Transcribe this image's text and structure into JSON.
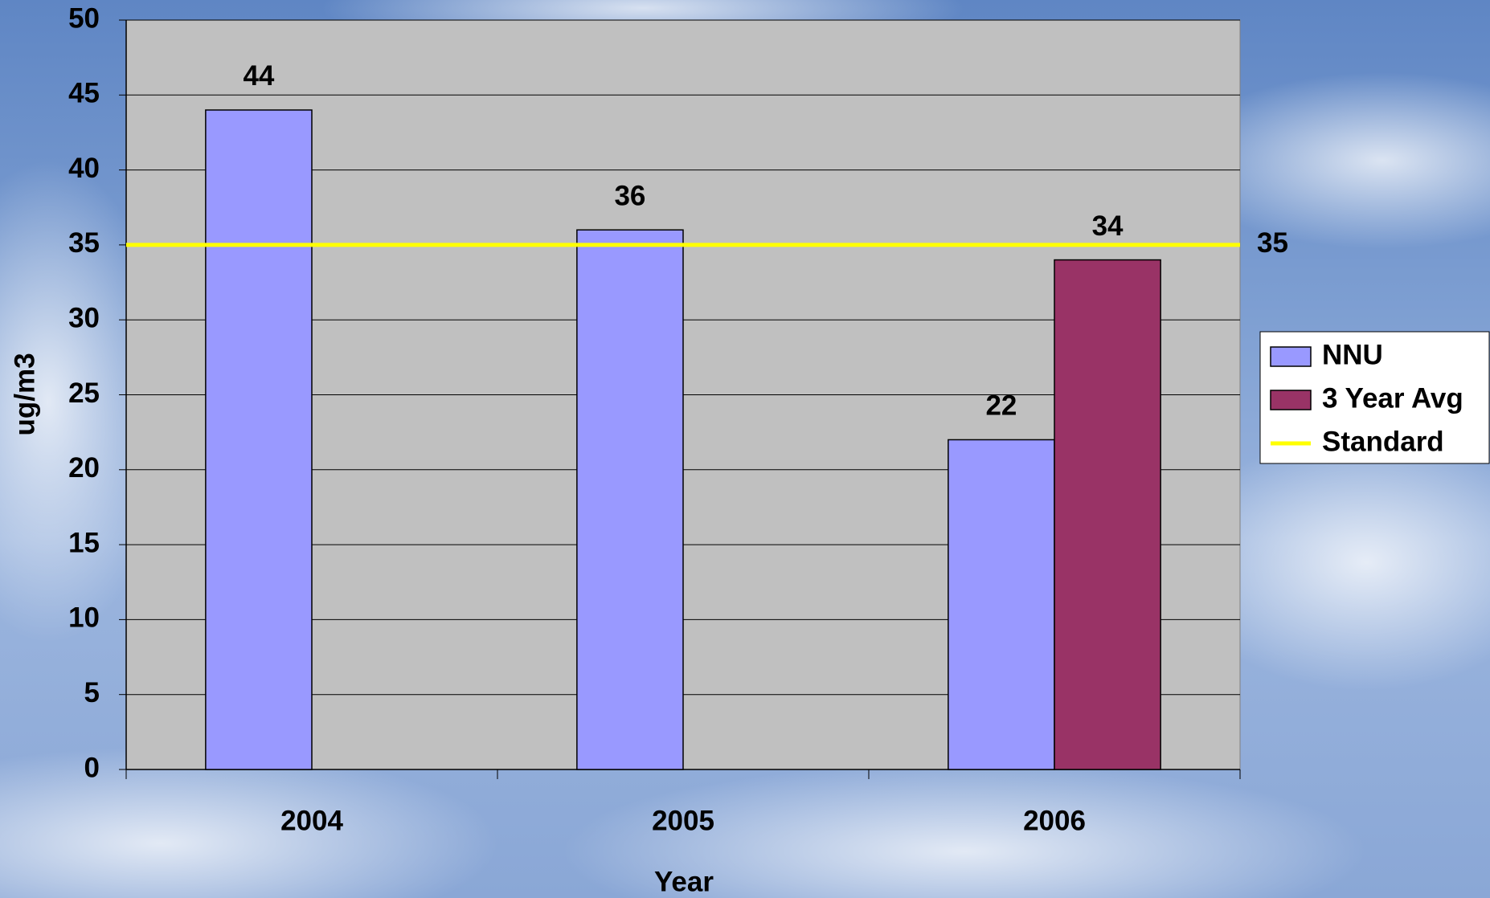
{
  "chart_data": {
    "type": "bar",
    "x_label": "Year",
    "y_label": "ug/m3",
    "categories": [
      "2004",
      "2005",
      "2006"
    ],
    "series": [
      {
        "name": "NNU",
        "color": "#9999ff",
        "values": [
          44,
          36,
          22
        ]
      },
      {
        "name": "3 Year Avg",
        "color": "#993366",
        "values": [
          null,
          null,
          34
        ]
      }
    ],
    "reference_line": {
      "name": "Standard",
      "value": 35,
      "color": "#ffff00"
    },
    "ylim": [
      0,
      50
    ],
    "yticks": [
      0,
      5,
      10,
      15,
      20,
      25,
      30,
      35,
      40,
      45,
      50
    ],
    "grid": true,
    "legend": "right"
  }
}
